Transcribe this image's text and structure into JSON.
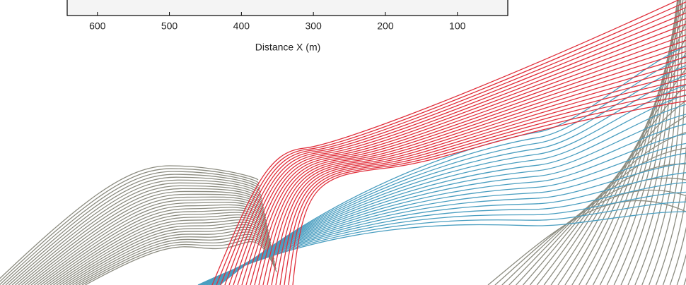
{
  "chart_data": {
    "type": "axis",
    "xlabel": "Distance X (m)",
    "xlim": [
      642,
      30
    ],
    "xticks": [
      600,
      500,
      400,
      300,
      200,
      100
    ]
  }
}
